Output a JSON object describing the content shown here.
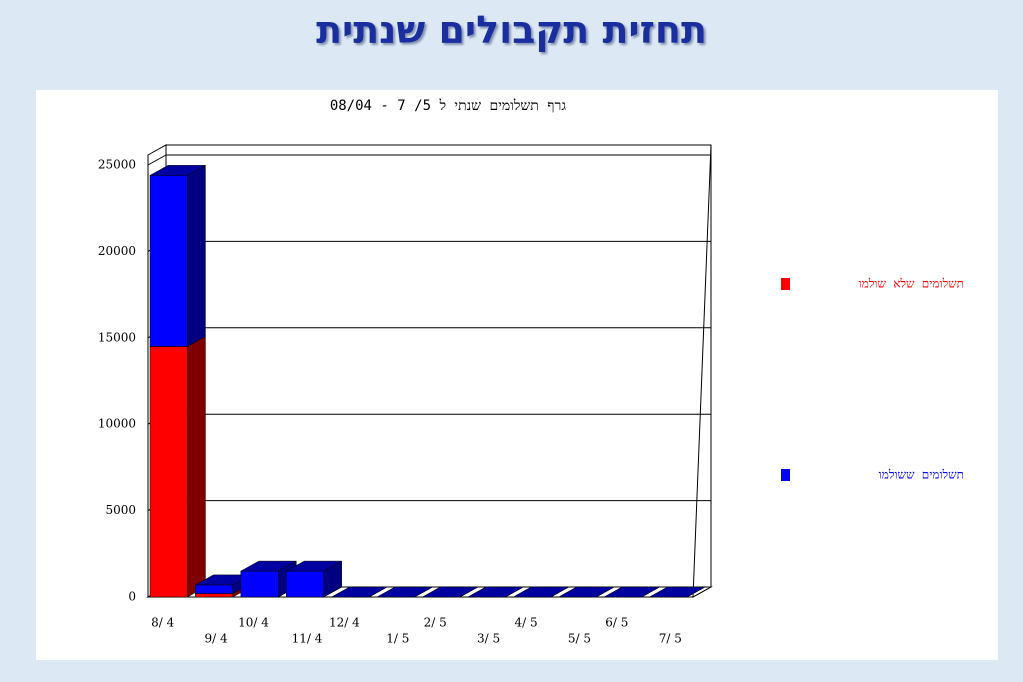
{
  "slide_title": "תחזית תקבולים שנתית",
  "chart_data": {
    "type": "bar3d_stacked",
    "title": "גרף תשלומים שנתי ל 5/ 7 - 08/04",
    "categories": [
      "8/ 4",
      "9/ 4",
      "10/ 4",
      "11/ 4",
      "12/ 4",
      "1/ 5",
      "2/ 5",
      "3/ 5",
      "4/ 5",
      "5/ 5",
      "6/ 5",
      "7/ 5"
    ],
    "series": [
      {
        "name": "תשלומים שלא שולמו",
        "color": "#ff0000",
        "values": [
          14500,
          200,
          0,
          0,
          0,
          0,
          0,
          0,
          0,
          0,
          0,
          0
        ]
      },
      {
        "name": "תשלומים ששולמו",
        "color": "#0000ff",
        "values": [
          9900,
          500,
          1500,
          1500,
          0,
          0,
          0,
          0,
          0,
          0,
          0,
          0
        ]
      }
    ],
    "ylim": [
      0,
      25000
    ],
    "yticks": [
      0,
      5000,
      10000,
      15000,
      20000,
      25000
    ],
    "grid": true
  }
}
